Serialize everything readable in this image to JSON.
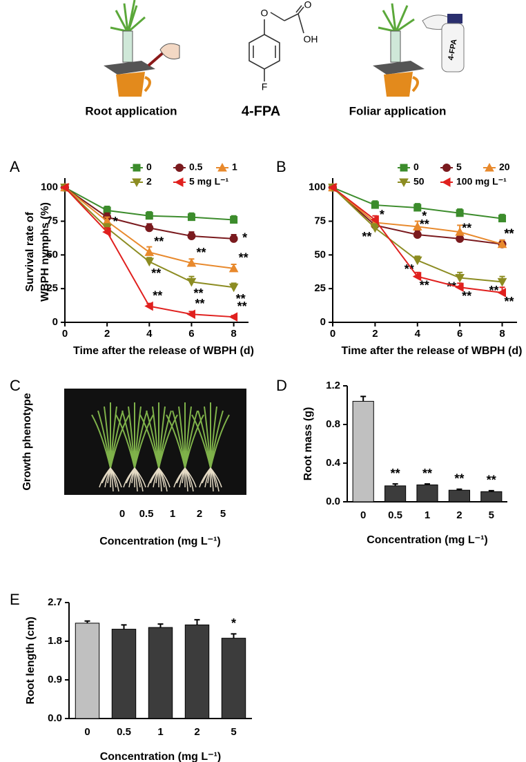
{
  "header": {
    "captions": [
      "Root application",
      "4-FPA",
      "Foliar application"
    ],
    "atoms": [
      "O",
      "O",
      "OH",
      "F"
    ],
    "bottle_label": "4-FPA"
  },
  "photo_panel": {
    "panel_label": "C",
    "y_label": "Growth phenotype",
    "categories": [
      "0",
      "0.5",
      "1",
      "2",
      "5"
    ],
    "x_label": "Concentration (mg L⁻¹)"
  },
  "chart_data": [
    {
      "type": "line",
      "panel_label": "A",
      "y_label": [
        "Survival rate of",
        "WBPH nymphs (%)"
      ],
      "x_label": "Time after the release of WBPH (d)",
      "x": [
        0,
        2,
        4,
        6,
        8
      ],
      "xlim": [
        0,
        8.7
      ],
      "xticks": [
        0,
        2,
        4,
        6,
        8
      ],
      "ylim": [
        0,
        107
      ],
      "yticks": [
        0,
        25,
        50,
        75,
        100
      ],
      "series": [
        {
          "name": "0",
          "color": "#3c8c2c",
          "marker": "square",
          "values": [
            100,
            83,
            79,
            78,
            76
          ],
          "errors": [
            0,
            3,
            3,
            3,
            3
          ],
          "sig": [
            null,
            null,
            null,
            null,
            null
          ]
        },
        {
          "name": "0.5",
          "color": "#7a1a1e",
          "marker": "circle",
          "values": [
            100,
            78,
            70,
            64,
            62
          ],
          "errors": [
            0,
            3,
            3,
            3,
            3
          ],
          "sig": [
            null,
            null,
            null,
            null,
            "*"
          ]
        },
        {
          "name": "1",
          "color": "#e8892c",
          "marker": "triangle-up",
          "values": [
            100,
            75,
            52,
            44,
            40
          ],
          "errors": [
            0,
            3,
            4,
            3,
            3
          ],
          "sig": [
            null,
            null,
            "**",
            "**",
            "**"
          ]
        },
        {
          "name": "2",
          "color": "#8c8c22",
          "marker": "triangle-down",
          "values": [
            100,
            70,
            45,
            30,
            26
          ],
          "errors": [
            0,
            3,
            3,
            4,
            3
          ],
          "sig": [
            null,
            null,
            "**",
            "**",
            "**"
          ]
        },
        {
          "name": "5 mg L⁻¹",
          "color": "#e0201e",
          "marker": "triangle-left",
          "values": [
            100,
            67,
            12,
            6,
            4
          ],
          "errors": [
            0,
            3,
            2,
            2,
            1
          ],
          "sig": [
            null,
            "*",
            "**",
            "**",
            "**"
          ]
        }
      ]
    },
    {
      "type": "line",
      "panel_label": "B",
      "x_label": "Time after the release of WBPH (d)",
      "x": [
        0,
        2,
        4,
        6,
        8
      ],
      "xlim": [
        0,
        8.7
      ],
      "xticks": [
        0,
        2,
        4,
        6,
        8
      ],
      "ylim": [
        0,
        107
      ],
      "yticks": [
        0,
        25,
        50,
        75,
        100
      ],
      "series": [
        {
          "name": "0",
          "color": "#3c8c2c",
          "marker": "square",
          "values": [
            100,
            87,
            85,
            81,
            77
          ],
          "errors": [
            0,
            3,
            3,
            3,
            3
          ],
          "sig": [
            null,
            null,
            null,
            null,
            null
          ]
        },
        {
          "name": "5",
          "color": "#7a1a1e",
          "marker": "circle",
          "values": [
            100,
            72,
            65,
            62,
            58
          ],
          "errors": [
            0,
            3,
            3,
            3,
            3
          ],
          "sig": [
            null,
            "*",
            "**",
            "**",
            "**"
          ]
        },
        {
          "name": "20",
          "color": "#e8892c",
          "marker": "triangle-up",
          "values": [
            100,
            74,
            71,
            67,
            58
          ],
          "errors": [
            0,
            3,
            4,
            5,
            3
          ],
          "sig": [
            null,
            null,
            "*",
            null,
            "**"
          ]
        },
        {
          "name": "50",
          "color": "#8c8c22",
          "marker": "triangle-down",
          "values": [
            100,
            70,
            46,
            33,
            30
          ],
          "errors": [
            0,
            3,
            3,
            4,
            4
          ],
          "sig": [
            null,
            "**",
            "**",
            "**",
            "**"
          ]
        },
        {
          "name": "100 mg L⁻¹",
          "color": "#e0201e",
          "marker": "triangle-left",
          "values": [
            100,
            76,
            34,
            26,
            22
          ],
          "errors": [
            0,
            3,
            3,
            3,
            4
          ],
          "sig": [
            null,
            null,
            "**",
            "**",
            "**"
          ]
        }
      ]
    },
    {
      "type": "bar",
      "panel_label": "D",
      "y_label": "Root mass (g)",
      "x_label": "Concentration (mg L⁻¹)",
      "categories": [
        "0",
        "0.5",
        "1",
        "2",
        "5"
      ],
      "values": [
        1.04,
        0.165,
        0.175,
        0.12,
        0.105
      ],
      "errors": [
        0.05,
        0.02,
        0.01,
        0.01,
        0.01
      ],
      "colors": [
        "#c0c0c0",
        "#3c3c3c",
        "#3c3c3c",
        "#3c3c3c",
        "#3c3c3c"
      ],
      "sig": [
        null,
        "**",
        "**",
        "**",
        "**"
      ],
      "ylim": [
        0,
        1.2
      ],
      "yticks": [
        {
          "value": 0,
          "label": "0.0"
        },
        0.4,
        0.8,
        1.2
      ]
    },
    {
      "type": "bar",
      "panel_label": "E",
      "y_label": "Root length (cm)",
      "x_label": "Concentration (mg L⁻¹)",
      "categories": [
        "0",
        "0.5",
        "1",
        "2",
        "5"
      ],
      "values": [
        2.22,
        2.08,
        2.12,
        2.18,
        1.87
      ],
      "errors": [
        0.05,
        0.1,
        0.08,
        0.12,
        0.1
      ],
      "colors": [
        "#c0c0c0",
        "#3c3c3c",
        "#3c3c3c",
        "#3c3c3c",
        "#3c3c3c"
      ],
      "sig": [
        null,
        null,
        null,
        null,
        "*"
      ],
      "ylim": [
        0,
        2.7
      ],
      "yticks": [
        {
          "value": 0,
          "label": "0.0"
        },
        0.9,
        1.8,
        2.7
      ]
    }
  ]
}
